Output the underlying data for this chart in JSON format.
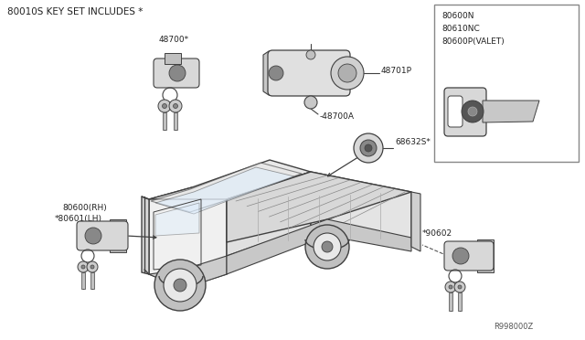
{
  "bg_color": "#ffffff",
  "line_color": "#404040",
  "text_color": "#222222",
  "title_text": "80010S KEY SET INCLUDES *",
  "ref_code": "R998000Z",
  "inset_labels": [
    "80600N",
    "80610NC",
    "80600P(VALET)"
  ],
  "figsize": [
    6.4,
    3.72
  ],
  "dpi": 100
}
